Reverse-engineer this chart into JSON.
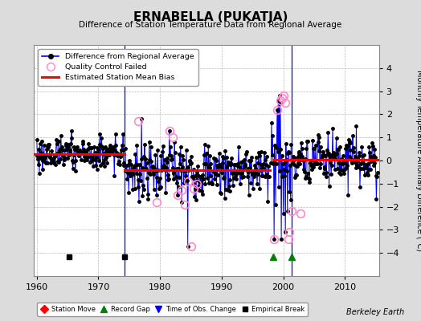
{
  "title": "ERNABELLA (PUKATJA)",
  "subtitle": "Difference of Station Temperature Data from Regional Average",
  "ylabel": "Monthly Temperature Anomaly Difference (°C)",
  "xlim": [
    1959.5,
    2015.5
  ],
  "ylim": [
    -5,
    5
  ],
  "yticks": [
    -4,
    -3,
    -2,
    -1,
    0,
    1,
    2,
    3,
    4
  ],
  "xticks": [
    1960,
    1970,
    1980,
    1990,
    2000,
    2010
  ],
  "background_color": "#dcdcdc",
  "plot_bg_color": "#ffffff",
  "seg1_bias": 0.28,
  "seg2_bias": -0.42,
  "seg3_bias": 0.05,
  "seg1_start": 1959.5,
  "seg1_end": 1974.3,
  "seg2_start": 1974.3,
  "seg2_end": 1997.8,
  "seg3_start": 1998.3,
  "seg3_end": 2015.5,
  "vline1": 1974.3,
  "vline2": 2001.3,
  "empirical_breaks": [
    1965.2,
    1974.3
  ],
  "record_gaps": [
    1998.4,
    2001.3
  ],
  "watermark": "Berkeley Earth",
  "legend_items": [
    "Difference from Regional Average",
    "Quality Control Failed",
    "Estimated Station Mean Bias"
  ],
  "bottom_legend": [
    "Station Move",
    "Record Gap",
    "Time of Obs. Change",
    "Empirical Break"
  ]
}
